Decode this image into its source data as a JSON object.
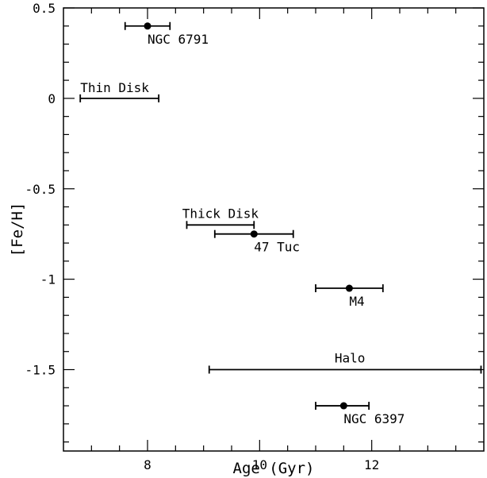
{
  "chart_data": {
    "type": "scatter",
    "title": "",
    "xlabel": "Age (Gyr)",
    "ylabel": "[Fe/H]",
    "xlim": [
      6.5,
      14.0
    ],
    "ylim": [
      -1.95,
      0.5
    ],
    "x_ticks": [
      8,
      10,
      12
    ],
    "x_tick_labels": [
      "8",
      "10",
      "12"
    ],
    "y_ticks": [
      0.5,
      0,
      -0.5,
      -1,
      -1.5
    ],
    "y_tick_labels": [
      "0.5",
      "0",
      "-0.5",
      "-1",
      "-1.5"
    ],
    "grid": false,
    "colors": {
      "ink": "#000000",
      "background": "#ffffff"
    },
    "clusters": [
      {
        "name": "NGC 6791",
        "x": 8.0,
        "y": 0.4,
        "xerr_low": 7.6,
        "xerr_high": 8.4
      },
      {
        "name": "47 Tuc",
        "x": 9.9,
        "y": -0.75,
        "xerr_low": 9.2,
        "xerr_high": 10.6
      },
      {
        "name": "M4",
        "x": 11.6,
        "y": -1.05,
        "xerr_low": 11.0,
        "xerr_high": 12.2
      },
      {
        "name": "NGC 6397",
        "x": 11.5,
        "y": -1.7,
        "xerr_low": 11.0,
        "xerr_high": 11.95
      }
    ],
    "ranges": [
      {
        "name": "Thin Disk",
        "y": 0.0,
        "x_low": 6.8,
        "x_high": 8.2
      },
      {
        "name": "Thick Disk",
        "y": -0.7,
        "x_low": 8.7,
        "x_high": 9.9
      },
      {
        "name": "Halo",
        "y": -1.5,
        "x_low": 9.1,
        "x_high": 13.95
      }
    ]
  }
}
